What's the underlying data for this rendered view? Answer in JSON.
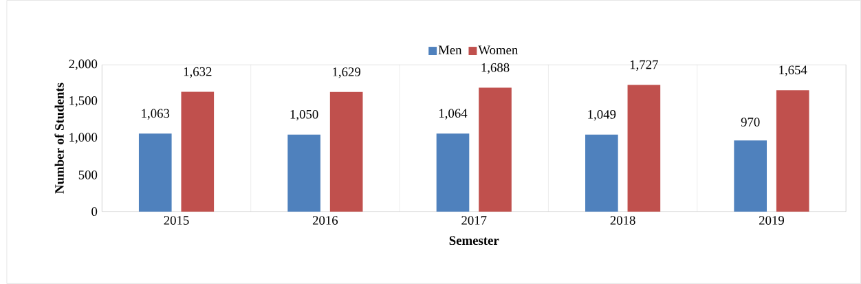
{
  "chart_data": {
    "type": "bar",
    "xlabel": "Semester",
    "ylabel": "Number of Students",
    "categories": [
      "2015",
      "2016",
      "2017",
      "2018",
      "2019"
    ],
    "series": [
      {
        "name": "Men",
        "color": "#4f81bd",
        "values": [
          1063,
          1050,
          1064,
          1049,
          970
        ],
        "value_labels": [
          "1,063",
          "1,050",
          "1,064",
          "1,049",
          "970"
        ]
      },
      {
        "name": "Women",
        "color": "#c0504d",
        "values": [
          1632,
          1629,
          1688,
          1727,
          1654
        ],
        "value_labels": [
          "1,632",
          "1,629",
          "1,688",
          "1,727",
          "1,654"
        ]
      }
    ],
    "ylim": [
      0,
      2000
    ],
    "yticks": [
      0,
      500,
      {
        "value": 1000,
        "label": "1,000"
      },
      {
        "value": 1500,
        "label": "1,500"
      },
      {
        "value": 2000,
        "label": "2,000"
      }
    ],
    "grid": "x",
    "legend": "top"
  }
}
